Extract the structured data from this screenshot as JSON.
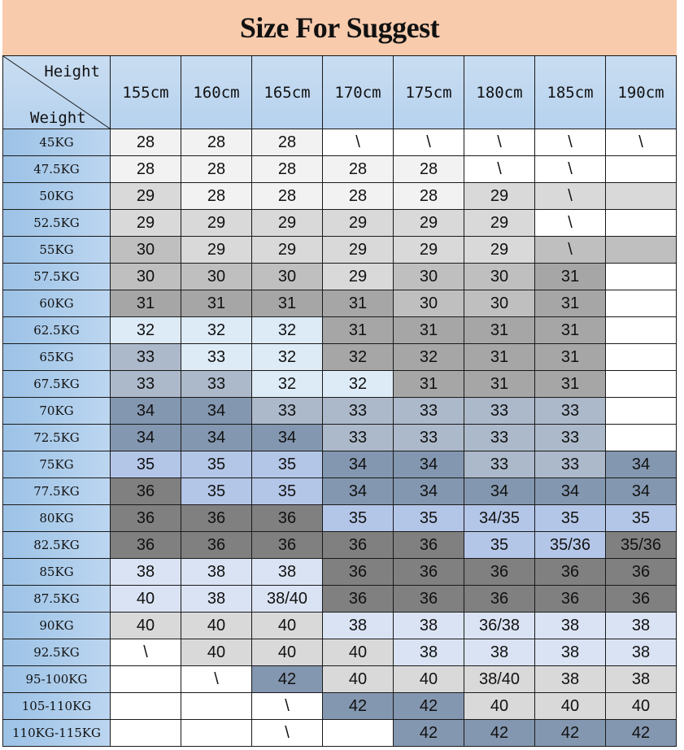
{
  "title": "Size For Suggest",
  "corner": {
    "top": "Height",
    "bottom": "Weight"
  },
  "heights": [
    "155cm",
    "160cm",
    "165cm",
    "170cm",
    "175cm",
    "180cm",
    "185cm",
    "190cm"
  ],
  "palette": {
    "w": "#ffffff",
    "a": "#f2f2f2",
    "b": "#d9d9d9",
    "c": "#bfbfbf",
    "d": "#a6a6a6",
    "e": "#ddebf7",
    "f": "#acb9ca",
    "g": "#8497b0",
    "h": "#b4c6e7",
    "i": "#808080",
    "j": "#dae3f3"
  },
  "title_color": "#f8cbad",
  "rows": [
    {
      "weight": "45KG",
      "sizes": [
        "28",
        "28",
        "28",
        "\\",
        "\\",
        "\\",
        "\\",
        "\\"
      ],
      "fills": "aaawwwww"
    },
    {
      "weight": "47.5KG",
      "sizes": [
        "28",
        "28",
        "28",
        "28",
        "28",
        "\\",
        "\\",
        ""
      ],
      "fills": "aaaaawww"
    },
    {
      "weight": "50KG",
      "sizes": [
        "29",
        "28",
        "28",
        "28",
        "28",
        "29",
        "\\",
        ""
      ],
      "fills": "baaaabbb"
    },
    {
      "weight": "52.5KG",
      "sizes": [
        "29",
        "29",
        "29",
        "29",
        "29",
        "29",
        "\\",
        ""
      ],
      "fills": "bbbbbbww"
    },
    {
      "weight": "55KG",
      "sizes": [
        "30",
        "29",
        "29",
        "29",
        "29",
        "29",
        "\\",
        ""
      ],
      "fills": "cbbbbbcc"
    },
    {
      "weight": "57.5KG",
      "sizes": [
        "30",
        "30",
        "30",
        "29",
        "30",
        "30",
        "31",
        ""
      ],
      "fills": "cccbccdw"
    },
    {
      "weight": "60KG",
      "sizes": [
        "31",
        "31",
        "31",
        "31",
        "30",
        "30",
        "31",
        ""
      ],
      "fills": "ddddccdw"
    },
    {
      "weight": "62.5KG",
      "sizes": [
        "32",
        "32",
        "32",
        "31",
        "31",
        "31",
        "31",
        ""
      ],
      "fills": "eeeddddw"
    },
    {
      "weight": "65KG",
      "sizes": [
        "33",
        "33",
        "32",
        "32",
        "32",
        "31",
        "31",
        ""
      ],
      "fills": "feeddddw"
    },
    {
      "weight": "67.5KG",
      "sizes": [
        "33",
        "33",
        "32",
        "32",
        "31",
        "31",
        "31",
        ""
      ],
      "fills": "ffeedddw"
    },
    {
      "weight": "70KG",
      "sizes": [
        "34",
        "34",
        "33",
        "33",
        "33",
        "33",
        "33",
        ""
      ],
      "fills": "ggfffffw"
    },
    {
      "weight": "72.5KG",
      "sizes": [
        "34",
        "34",
        "34",
        "33",
        "33",
        "33",
        "33",
        ""
      ],
      "fills": "gggffffw"
    },
    {
      "weight": "75KG",
      "sizes": [
        "35",
        "35",
        "35",
        "34",
        "34",
        "33",
        "33",
        "34"
      ],
      "fills": "hhhggffg"
    },
    {
      "weight": "77.5KG",
      "sizes": [
        "36",
        "35",
        "35",
        "34",
        "34",
        "34",
        "34",
        "34"
      ],
      "fills": "ihhggggg"
    },
    {
      "weight": "80KG",
      "sizes": [
        "36",
        "36",
        "36",
        "35",
        "35",
        "34/35",
        "35",
        "35"
      ],
      "fills": "iiihhhhh"
    },
    {
      "weight": "82.5KG",
      "sizes": [
        "36",
        "36",
        "36",
        "36",
        "36",
        "35",
        "35/36",
        "35/36"
      ],
      "fills": "iiiiihhi"
    },
    {
      "weight": "85KG",
      "sizes": [
        "38",
        "38",
        "38",
        "36",
        "36",
        "36",
        "36",
        "36"
      ],
      "fills": "jjjiiiii"
    },
    {
      "weight": "87.5KG",
      "sizes": [
        "40",
        "38",
        "38/40",
        "36",
        "36",
        "36",
        "36",
        "36"
      ],
      "fills": "jjjiiiii"
    },
    {
      "weight": "90KG",
      "sizes": [
        "40",
        "40",
        "40",
        "38",
        "38",
        "36/38",
        "38",
        "38"
      ],
      "fills": "bbbjjjjj"
    },
    {
      "weight": "92.5KG",
      "sizes": [
        "\\",
        "40",
        "40",
        "40",
        "38",
        "38",
        "38",
        "38"
      ],
      "fills": "wbbbjjjj"
    },
    {
      "weight": "95-100KG",
      "sizes": [
        "",
        "\\",
        "42",
        "40",
        "40",
        "38/40",
        "38",
        "38"
      ],
      "fills": "wwgbbbbb"
    },
    {
      "weight": "105-110KG",
      "sizes": [
        "",
        "",
        "\\",
        "42",
        "42",
        "40",
        "40",
        "40"
      ],
      "fills": "wwwggbbb"
    },
    {
      "weight": "110KG-115KG",
      "sizes": [
        "",
        "",
        "\\",
        "",
        "42",
        "42",
        "42",
        "42"
      ],
      "fills": "wwwwgggg"
    }
  ]
}
